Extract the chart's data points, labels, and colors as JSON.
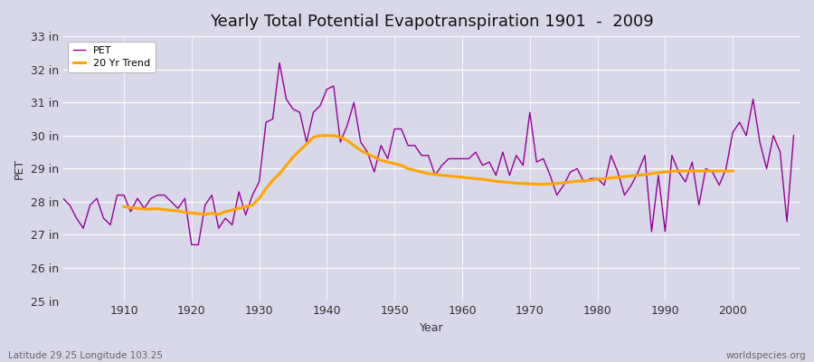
{
  "title": "Yearly Total Potential Evapotranspiration 1901  -  2009",
  "xlabel": "Year",
  "ylabel": "PET",
  "years": [
    1901,
    1902,
    1903,
    1904,
    1905,
    1906,
    1907,
    1908,
    1909,
    1910,
    1911,
    1912,
    1913,
    1914,
    1915,
    1916,
    1917,
    1918,
    1919,
    1920,
    1921,
    1922,
    1923,
    1924,
    1925,
    1926,
    1927,
    1928,
    1929,
    1930,
    1931,
    1932,
    1933,
    1934,
    1935,
    1936,
    1937,
    1938,
    1939,
    1940,
    1941,
    1942,
    1943,
    1944,
    1945,
    1946,
    1947,
    1948,
    1949,
    1950,
    1951,
    1952,
    1953,
    1954,
    1955,
    1956,
    1957,
    1958,
    1959,
    1960,
    1961,
    1962,
    1963,
    1964,
    1965,
    1966,
    1967,
    1968,
    1969,
    1970,
    1971,
    1972,
    1973,
    1974,
    1975,
    1976,
    1977,
    1978,
    1979,
    1980,
    1981,
    1982,
    1983,
    1984,
    1985,
    1986,
    1987,
    1988,
    1989,
    1990,
    1991,
    1992,
    1993,
    1994,
    1995,
    1996,
    1997,
    1998,
    1999,
    2000,
    2001,
    2002,
    2003,
    2004,
    2005,
    2006,
    2007,
    2008,
    2009
  ],
  "pet_values": [
    28.1,
    27.9,
    27.5,
    27.2,
    27.9,
    28.1,
    27.5,
    27.3,
    28.2,
    28.2,
    27.7,
    28.1,
    27.8,
    28.1,
    28.2,
    28.2,
    28.0,
    27.8,
    28.1,
    26.7,
    26.7,
    27.9,
    28.2,
    27.2,
    27.5,
    27.3,
    28.3,
    27.6,
    28.2,
    28.6,
    30.4,
    30.5,
    32.2,
    31.1,
    30.8,
    30.7,
    29.8,
    30.7,
    30.9,
    31.4,
    31.5,
    29.8,
    30.3,
    31.0,
    29.8,
    29.5,
    28.9,
    29.7,
    29.3,
    30.2,
    30.2,
    29.7,
    29.7,
    29.4,
    29.4,
    28.8,
    29.1,
    29.3,
    29.3,
    29.3,
    29.3,
    29.5,
    29.1,
    29.2,
    28.8,
    29.5,
    28.8,
    29.4,
    29.1,
    30.7,
    29.2,
    29.3,
    28.8,
    28.2,
    28.5,
    28.9,
    29.0,
    28.6,
    28.7,
    28.7,
    28.5,
    29.4,
    28.9,
    28.2,
    28.5,
    28.9,
    29.4,
    27.1,
    28.8,
    27.1,
    29.4,
    28.9,
    28.6,
    29.2,
    27.9,
    29.0,
    28.9,
    28.5,
    29.0,
    30.1,
    30.4,
    30.0,
    31.1,
    29.8,
    29.0,
    30.0,
    29.5,
    27.4,
    30.0
  ],
  "trend_start_year": 1910,
  "trend_values": [
    27.85,
    27.82,
    27.8,
    27.78,
    27.78,
    27.79,
    27.76,
    27.74,
    27.72,
    27.68,
    27.66,
    27.64,
    27.62,
    27.65,
    27.62,
    27.7,
    27.75,
    27.8,
    27.85,
    27.9,
    28.1,
    28.4,
    28.65,
    28.85,
    29.1,
    29.35,
    29.55,
    29.75,
    29.95,
    30.0,
    30.0,
    30.0,
    29.95,
    29.85,
    29.7,
    29.55,
    29.45,
    29.35,
    29.25,
    29.2,
    29.15,
    29.1,
    29.0,
    28.95,
    28.9,
    28.85,
    28.83,
    28.8,
    28.78,
    28.76,
    28.74,
    28.72,
    28.7,
    28.68,
    28.65,
    28.62,
    28.6,
    28.58,
    28.56,
    28.55,
    28.54,
    28.53,
    28.53,
    28.54,
    28.55,
    28.57,
    28.6,
    28.62,
    28.63,
    28.65,
    28.68,
    28.7,
    28.72,
    28.74,
    28.76,
    28.78,
    28.8,
    28.82,
    28.85,
    28.88,
    28.9,
    28.92,
    28.93,
    28.93,
    28.93,
    28.93,
    28.93,
    28.93,
    28.93,
    28.93,
    28.93
  ],
  "pet_color": "#990099",
  "trend_color": "#FFA500",
  "bg_color": "#d8d8e8",
  "plot_bg_color": "#d8d8e8",
  "grid_color": "#ffffff",
  "ylim": [
    25,
    33
  ],
  "ytick_labels": [
    "25 in",
    "26 in",
    "27 in",
    "28 in",
    "29 in",
    "30 in",
    "31 in",
    "32 in",
    "33 in"
  ],
  "ytick_values": [
    25,
    26,
    27,
    28,
    29,
    30,
    31,
    32,
    33
  ],
  "xtick_values": [
    1910,
    1920,
    1930,
    1940,
    1950,
    1960,
    1970,
    1980,
    1990,
    2000
  ],
  "xlim": [
    1901,
    2010
  ],
  "legend_pet": "PET",
  "legend_trend": "20 Yr Trend",
  "footnote_left": "Latitude 29.25 Longitude 103.25",
  "footnote_right": "worldspecies.org",
  "title_fontsize": 13,
  "axis_label_fontsize": 9,
  "tick_fontsize": 9
}
